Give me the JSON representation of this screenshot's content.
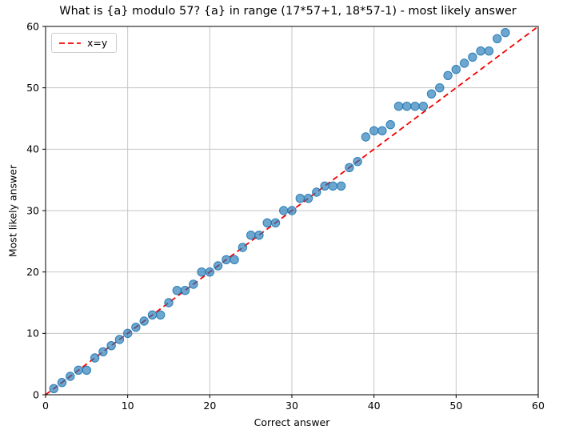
{
  "chart_data": {
    "type": "scatter",
    "title": "What is {a} modulo 57? {a} in range (17*57+1, 18*57-1) - most likely answer",
    "xlabel": "Correct answer",
    "ylabel": "Most likely answer",
    "xlim": [
      0,
      60
    ],
    "ylim": [
      0,
      60
    ],
    "xticks": [
      0,
      10,
      20,
      30,
      40,
      50,
      60
    ],
    "yticks": [
      0,
      10,
      20,
      30,
      40,
      50,
      60
    ],
    "grid": true,
    "grid_color": "#c6c6c6",
    "point_color": "#1f77b4",
    "point_alpha": 0.7,
    "legend": {
      "label": "x=y",
      "position": "upper left"
    },
    "line": {
      "name": "x=y",
      "style": "dashed",
      "color": "#f40000",
      "from": [
        0,
        0
      ],
      "to": [
        60,
        60
      ]
    },
    "series": [
      {
        "name": "most likely answer",
        "x": [
          1,
          2,
          3,
          4,
          5,
          6,
          7,
          8,
          9,
          10,
          11,
          12,
          13,
          14,
          15,
          16,
          17,
          18,
          19,
          20,
          21,
          22,
          23,
          24,
          25,
          26,
          27,
          28,
          29,
          30,
          31,
          32,
          33,
          34,
          35,
          36,
          37,
          38,
          39,
          40,
          41,
          42,
          43,
          44,
          45,
          46,
          47,
          48,
          49,
          50,
          51,
          52,
          53,
          54,
          55,
          56
        ],
        "y": [
          1,
          2,
          3,
          4,
          4,
          6,
          7,
          8,
          9,
          10,
          11,
          12,
          13,
          13,
          15,
          17,
          17,
          18,
          20,
          20,
          21,
          22,
          22,
          24,
          26,
          26,
          28,
          28,
          30,
          30,
          32,
          32,
          33,
          34,
          34,
          34,
          37,
          38,
          42,
          43,
          43,
          44,
          47,
          47,
          47,
          47,
          49,
          50,
          52,
          53,
          54,
          55,
          56,
          56,
          58,
          59
        ]
      }
    ]
  }
}
